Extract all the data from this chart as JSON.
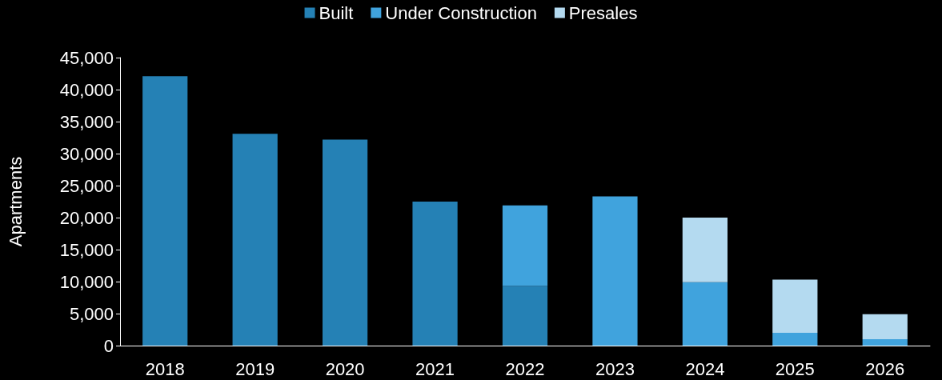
{
  "chart_data": {
    "type": "bar",
    "stacked": true,
    "ylabel": "Apartments",
    "categories": [
      "2018",
      "2019",
      "2020",
      "2021",
      "2022",
      "2023",
      "2024",
      "2025",
      "2026"
    ],
    "series": [
      {
        "name": "Built",
        "color": "#2581b5",
        "values": [
          42100,
          33100,
          32200,
          22500,
          9300,
          null,
          null,
          null,
          null
        ]
      },
      {
        "name": "Under Construction",
        "color": "#40a3dd",
        "values": [
          null,
          null,
          null,
          null,
          12600,
          23300,
          9900,
          2000,
          1000
        ]
      },
      {
        "name": "Presales",
        "color": "#b4daf0",
        "values": [
          null,
          null,
          null,
          null,
          null,
          null,
          10100,
          8300,
          3900
        ]
      }
    ],
    "ylim": [
      0,
      45000
    ],
    "yticks": [
      0,
      {
        "value": 5000,
        "label": "5,000"
      },
      {
        "value": 10000,
        "label": "10,000"
      },
      {
        "value": 15000,
        "label": "15,000"
      },
      {
        "value": 20000,
        "label": "20,000"
      },
      {
        "value": 25000,
        "label": "25,000"
      },
      {
        "value": 30000,
        "label": "30,000"
      },
      {
        "value": 35000,
        "label": "35,000"
      },
      {
        "value": 40000,
        "label": "40,000"
      },
      {
        "value": 45000,
        "label": "45,000"
      }
    ],
    "grid": false,
    "legend": "top"
  }
}
